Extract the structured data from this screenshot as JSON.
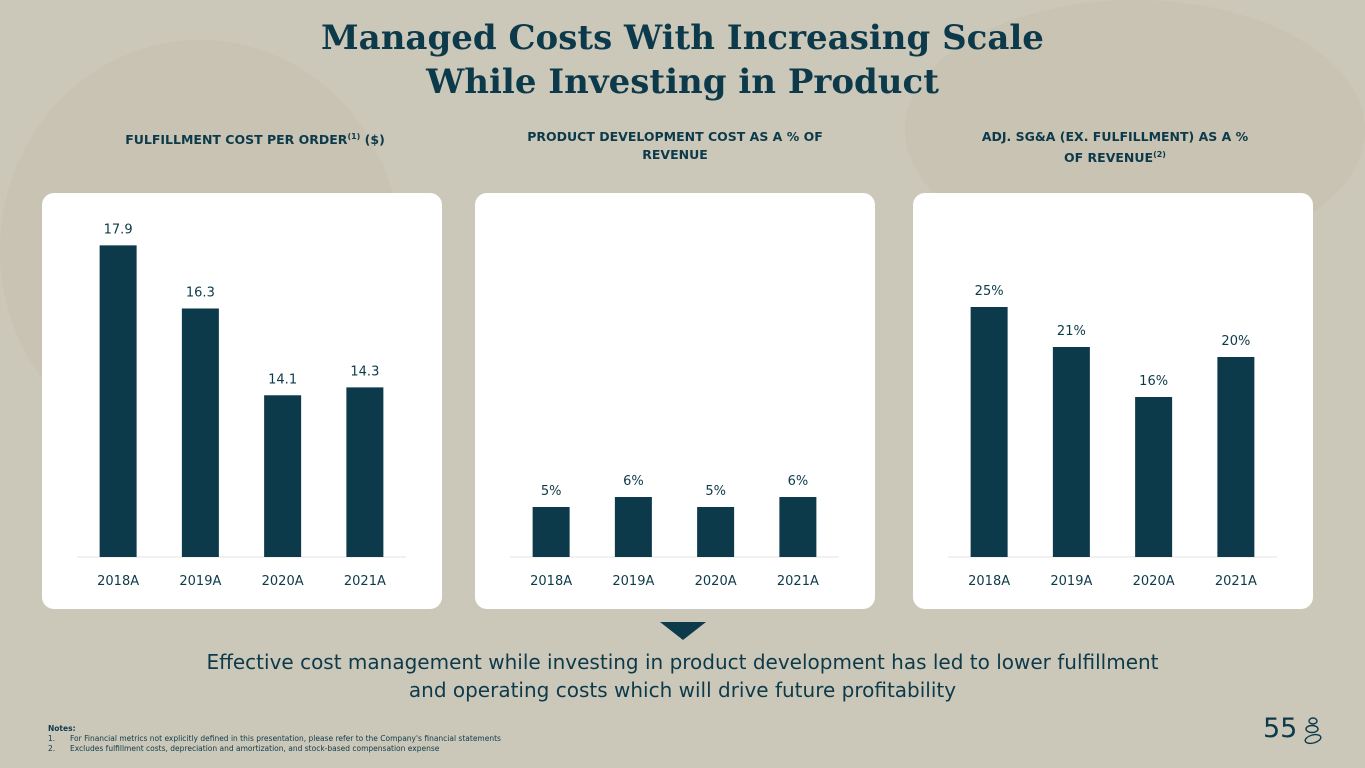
{
  "title_line1": "Managed Costs With Increasing Scale",
  "title_line2": "While Investing in Product",
  "colors": {
    "bar": "#0d3a4a",
    "background": "#ccc8b9",
    "card": "#ffffff"
  },
  "chart_data": [
    {
      "type": "bar",
      "title": "FULFILLMENT COST PER ORDER",
      "title_sup": "(1)",
      "title_suffix": " ($)",
      "categories": [
        "2018A",
        "2019A",
        "2020A",
        "2021A"
      ],
      "values": [
        17.9,
        16.3,
        14.1,
        14.3
      ],
      "labels": [
        "17.9",
        "16.3",
        "14.1",
        "14.3"
      ],
      "xlabel": "",
      "ylabel": "",
      "ylim": [
        10,
        19.05
      ]
    },
    {
      "type": "bar",
      "title": "PRODUCT DEVELOPMENT COST AS A % OF REVENUE",
      "title_sup": "",
      "title_suffix": "",
      "categories": [
        "2018A",
        "2019A",
        "2020A",
        "2021A"
      ],
      "values": [
        5,
        6,
        5,
        6
      ],
      "labels": [
        "5%",
        "6%",
        "5%",
        "6%"
      ],
      "xlabel": "",
      "ylabel": "",
      "ylim": [
        0,
        35.7
      ]
    },
    {
      "type": "bar",
      "title": "ADJ. SG&A (EX. FULFILLMENT) AS A % OF REVENUE",
      "title_sup": "(2)",
      "title_suffix": "",
      "categories": [
        "2018A",
        "2019A",
        "2020A",
        "2021A"
      ],
      "values": [
        25,
        21,
        16,
        20
      ],
      "labels": [
        "25%",
        "21%",
        "16%",
        "20%"
      ],
      "xlabel": "",
      "ylabel": "",
      "ylim": [
        0,
        35.7
      ]
    }
  ],
  "conclusion_line1": "Effective cost management while investing in product development has led to lower fulfillment",
  "conclusion_line2": "and operating costs which will drive future profitability",
  "notes": {
    "heading": "Notes:",
    "items": [
      {
        "num": "1.",
        "text": "For Financial metrics not explicitly defined in this presentation, please refer to the Company's financial statements"
      },
      {
        "num": "2.",
        "text": "Excludes fulfillment costs, depreciation and amortization, and stock-based compensation expense"
      }
    ]
  },
  "page_number": "55"
}
